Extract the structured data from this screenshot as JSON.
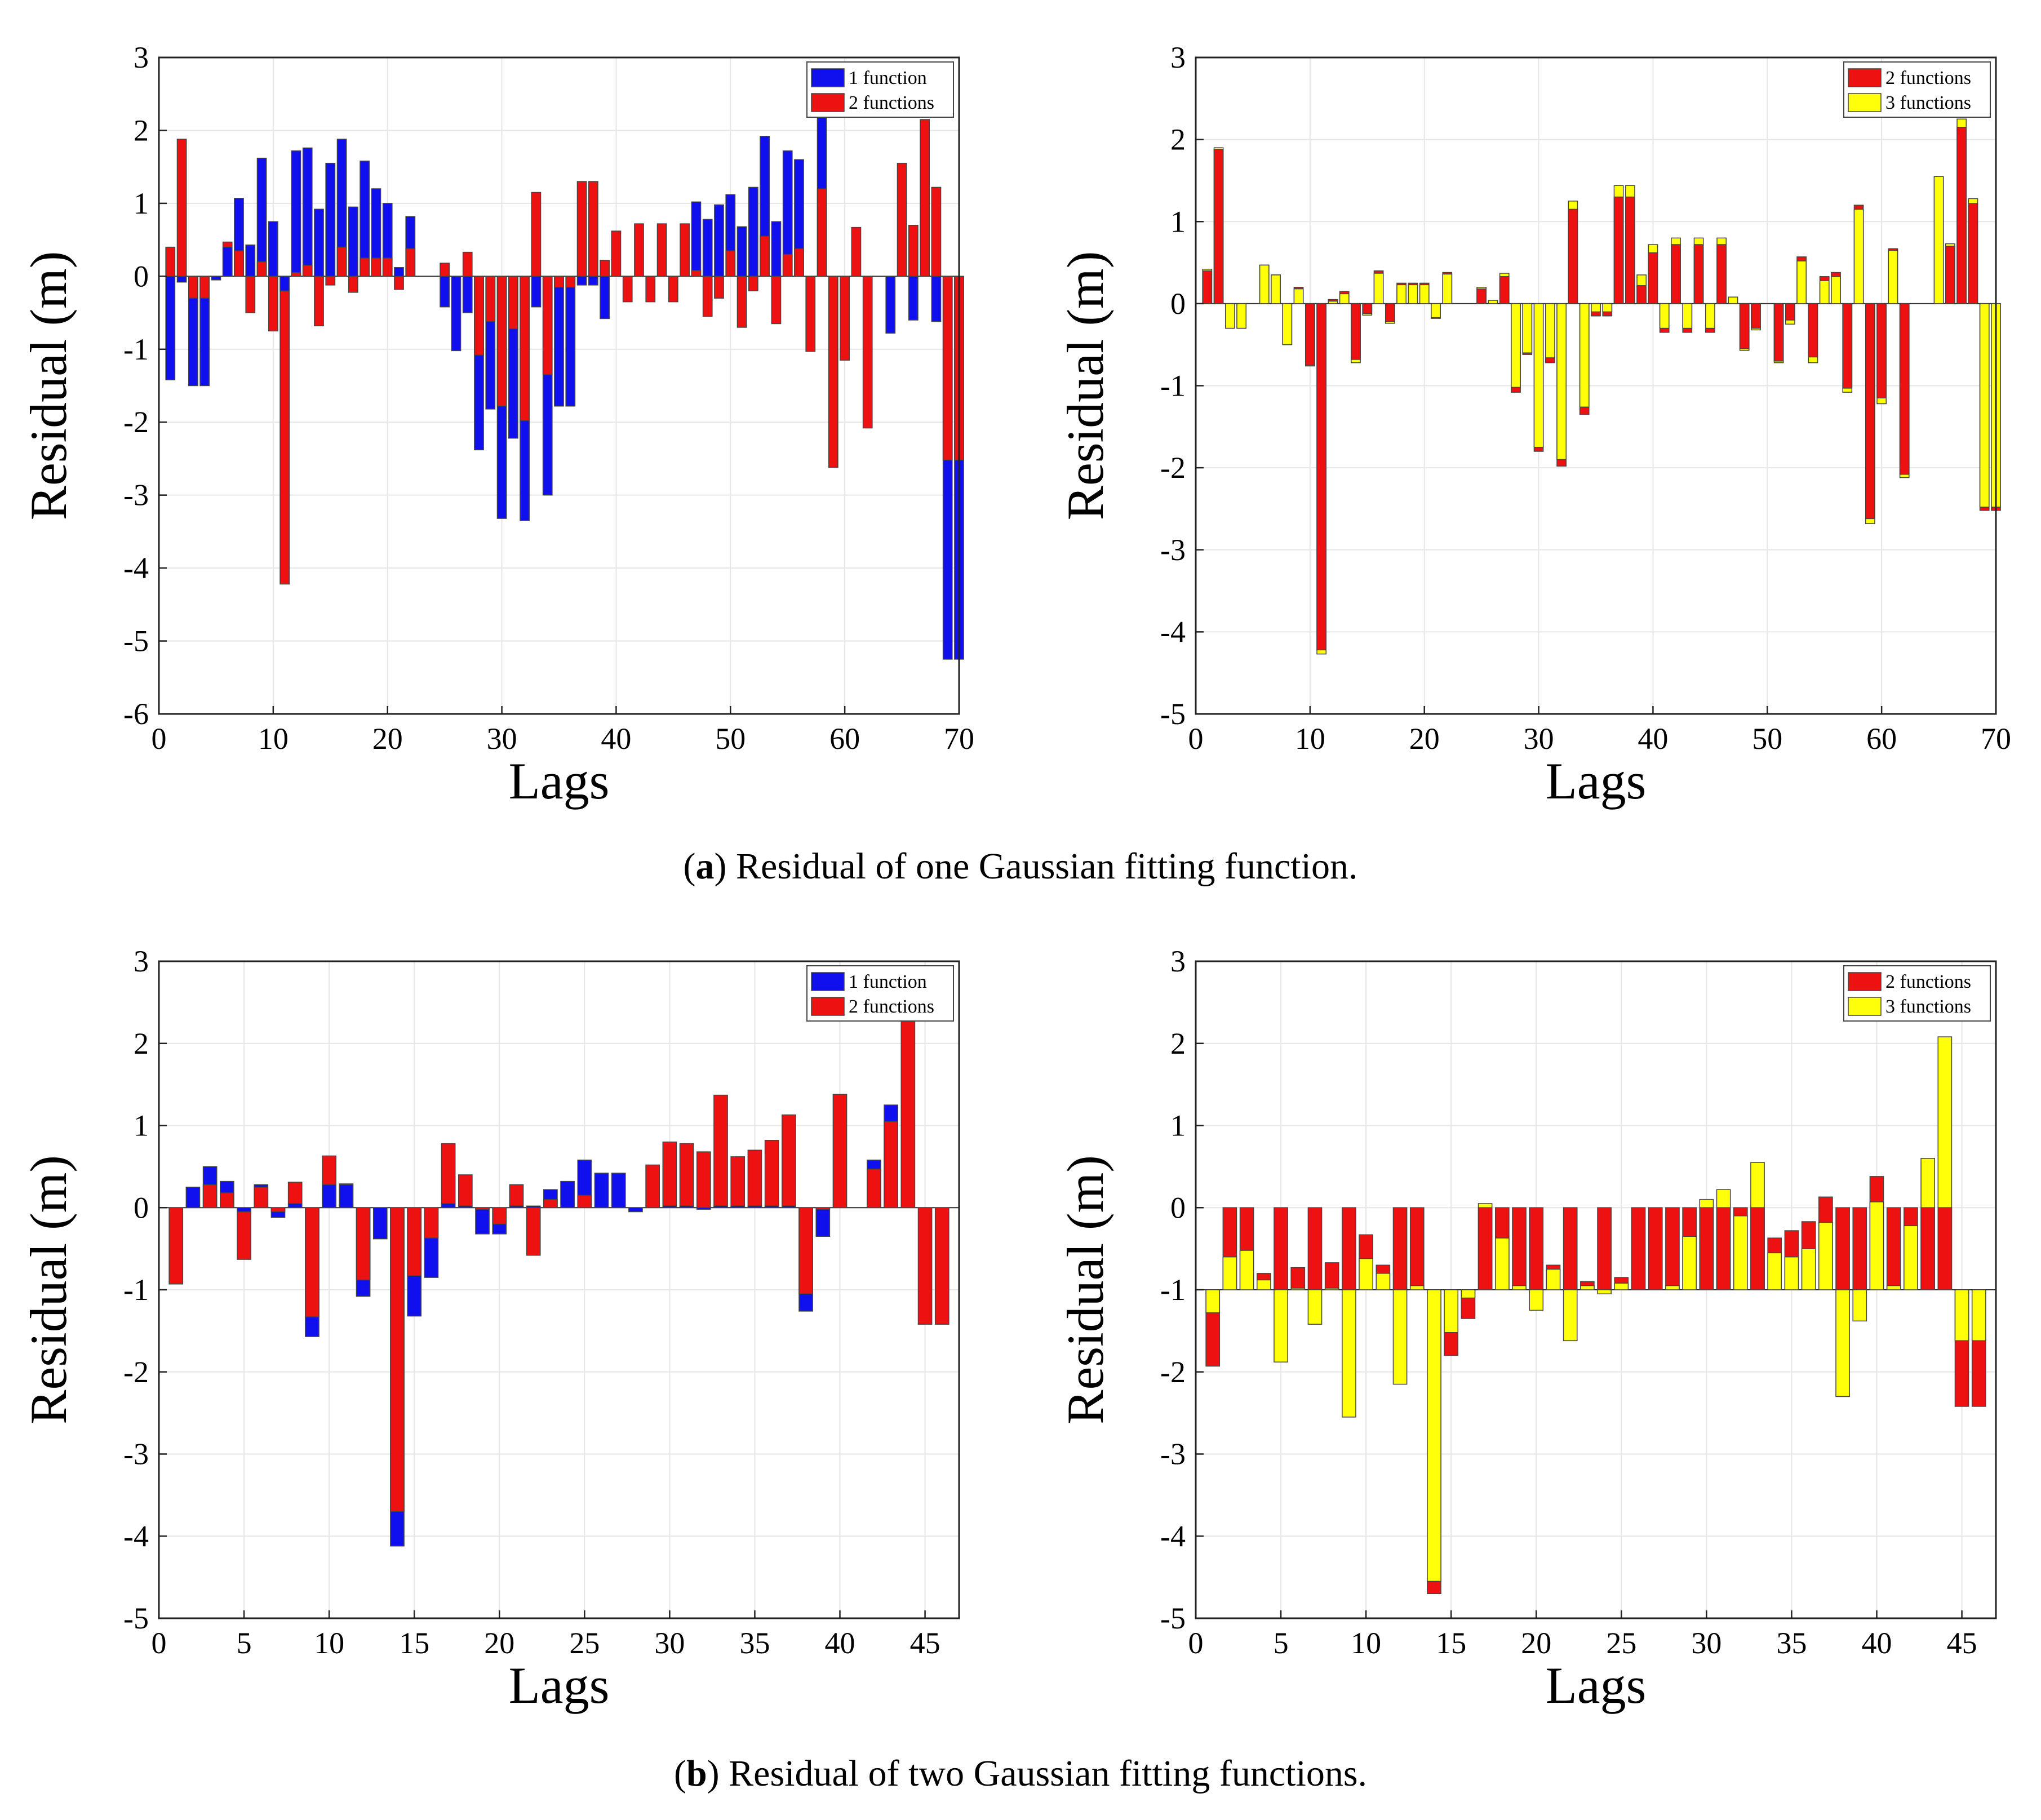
{
  "captions": {
    "a": {
      "label": "a",
      "text": ") Residual of one Gaussian fitting function."
    },
    "b": {
      "label": "b",
      "text": ") Residual of two Gaussian fitting functions."
    }
  },
  "colors": {
    "blue": "#1010ee",
    "red": "#ee1111",
    "yellow": "#ffff0a",
    "grid": "#e6e6e6"
  },
  "chart_data": [
    {
      "id": "a-left",
      "type": "bar",
      "xlabel": "Lags",
      "ylabel": "Residual (m)",
      "xlim": [
        0,
        70
      ],
      "ylim": [
        -6,
        3
      ],
      "xticks": [
        0,
        10,
        20,
        30,
        40,
        50,
        60,
        70
      ],
      "yticks": [
        -6,
        -5,
        -4,
        -3,
        -2,
        -1,
        0,
        1,
        2,
        3
      ],
      "legend_position": "top-right",
      "series": [
        {
          "name": "1 function",
          "color": "#1010ee",
          "values": [
            -1.42,
            -0.08,
            -1.5,
            -1.5,
            -0.05,
            0.4,
            1.07,
            0.43,
            1.62,
            0.75,
            -0.2,
            1.72,
            1.76,
            0.92,
            1.55,
            1.88,
            0.95,
            1.58,
            1.2,
            1.0,
            0.12,
            0.82,
            0,
            0,
            -0.42,
            -1.02,
            -0.5,
            -2.38,
            -1.82,
            -3.32,
            -2.22,
            -3.35,
            -0.42,
            -3.0,
            -1.78,
            -1.78,
            -0.12,
            -0.12,
            -0.58,
            0,
            0,
            0,
            0,
            0,
            0,
            0,
            1.02,
            0.78,
            0.98,
            1.12,
            0.68,
            1.22,
            1.92,
            0.75,
            1.72,
            1.6,
            0,
            2.18,
            0,
            0,
            0,
            0,
            0,
            -0.78,
            0,
            -0.6,
            0,
            -0.62,
            -5.25,
            -5.25
          ]
        },
        {
          "name": "2 functions",
          "color": "#ee1111",
          "values": [
            0.4,
            1.88,
            -0.3,
            -0.3,
            0,
            0.47,
            0.35,
            -0.5,
            0.2,
            -0.75,
            -4.22,
            0.05,
            0.15,
            -0.68,
            -0.12,
            0.4,
            -0.22,
            0.25,
            0.25,
            0.25,
            -0.18,
            0.38,
            0,
            0,
            0.18,
            0,
            0.33,
            -1.08,
            -0.62,
            -1.78,
            -0.72,
            -1.98,
            1.15,
            -1.35,
            -0.15,
            -0.15,
            1.3,
            1.3,
            0.22,
            0.62,
            -0.35,
            0.72,
            -0.35,
            0.72,
            -0.35,
            0.72,
            0.08,
            -0.55,
            -0.3,
            0.35,
            -0.7,
            -0.2,
            0.55,
            -0.65,
            0.3,
            0.38,
            -1.03,
            1.2,
            -2.62,
            -1.15,
            0.67,
            -2.08,
            0,
            0,
            1.55,
            0.7,
            2.15,
            1.22,
            -2.52,
            -2.52
          ]
        }
      ]
    },
    {
      "id": "a-right",
      "type": "bar",
      "xlabel": "Lags",
      "ylabel": "Residual (m)",
      "xlim": [
        0,
        70
      ],
      "ylim": [
        -5,
        3
      ],
      "xticks": [
        0,
        10,
        20,
        30,
        40,
        50,
        60,
        70
      ],
      "yticks": [
        -5,
        -4,
        -3,
        -2,
        -1,
        0,
        1,
        2,
        3
      ],
      "legend_position": "top-right",
      "series": [
        {
          "name": "2 functions",
          "color": "#ee1111",
          "values": [
            0.4,
            1.88,
            -0.3,
            -0.3,
            0,
            0.47,
            0.35,
            -0.5,
            0.2,
            -0.75,
            -4.22,
            0.05,
            0.15,
            -0.68,
            -0.12,
            0.4,
            -0.22,
            0.25,
            0.25,
            0.25,
            -0.18,
            0.38,
            0,
            0,
            0.18,
            0,
            0.33,
            -1.08,
            -0.62,
            -1.8,
            -0.72,
            -1.98,
            1.15,
            -1.35,
            -0.15,
            -0.15,
            1.3,
            1.3,
            0.22,
            0.62,
            -0.35,
            0.72,
            -0.35,
            0.72,
            -0.35,
            0.72,
            0.08,
            -0.55,
            -0.3,
            0.0,
            -0.7,
            -0.2,
            0.57,
            -0.65,
            0.33,
            0.38,
            -1.03,
            1.2,
            -2.62,
            -1.15,
            0.67,
            -2.08,
            0,
            0,
            1.55,
            0.7,
            2.15,
            1.22,
            -2.52,
            -2.52
          ]
        },
        {
          "name": "3 functions",
          "color": "#ffff0a",
          "values": [
            0.42,
            1.9,
            -0.3,
            -0.3,
            0,
            0.47,
            0.35,
            -0.5,
            0.18,
            -0.76,
            -4.27,
            0.03,
            0.12,
            -0.72,
            -0.14,
            0.37,
            -0.24,
            0.23,
            0.23,
            0.23,
            -0.17,
            0.36,
            0,
            0,
            0.2,
            0.04,
            0.37,
            -1.02,
            -0.6,
            -1.75,
            -0.66,
            -1.9,
            1.25,
            -1.26,
            -0.1,
            -0.1,
            1.44,
            1.44,
            0.35,
            0.72,
            -0.3,
            0.8,
            -0.3,
            0.8,
            -0.3,
            0.8,
            0.08,
            -0.57,
            -0.32,
            0.0,
            -0.72,
            -0.25,
            0.52,
            -0.72,
            0.28,
            0.33,
            -1.08,
            1.15,
            -2.68,
            -1.22,
            0.65,
            -2.12,
            0,
            0,
            1.55,
            0.73,
            2.25,
            1.28,
            -2.48,
            -2.48
          ]
        }
      ]
    },
    {
      "id": "b-left",
      "type": "bar",
      "xlabel": "Lags",
      "ylabel": "Residual (m)",
      "xlim": [
        0,
        47
      ],
      "ylim": [
        -5,
        3
      ],
      "xticks": [
        0,
        5,
        10,
        15,
        20,
        25,
        30,
        35,
        40,
        45
      ],
      "yticks": [
        -5,
        -4,
        -3,
        -2,
        -1,
        0,
        1,
        2,
        3
      ],
      "legend_position": "top-right",
      "series": [
        {
          "name": "1 function",
          "color": "#1010ee",
          "values": [
            0,
            0.25,
            0.5,
            0.32,
            -0.05,
            0.28,
            -0.12,
            0.05,
            -1.57,
            0.28,
            0.28,
            -1.08,
            -0.38,
            -4.12,
            -1.32,
            -0.85,
            0.05,
            0.02,
            -0.32,
            -0.32,
            0.02,
            0.02,
            0.22,
            0.32,
            0.58,
            0.42,
            0.42,
            -0.05,
            0,
            0.02,
            0.02,
            -0.02,
            0.02,
            0.02,
            0.02,
            0.02,
            0.02,
            -1.26,
            -0.35,
            0,
            0,
            0.58,
            1.25,
            0,
            0,
            0
          ]
        },
        {
          "name": "2 functions",
          "color": "#ee1111",
          "values": [
            -0.93,
            0,
            0.28,
            0.18,
            -0.63,
            0.25,
            -0.05,
            0.31,
            -1.33,
            0.63,
            0.29,
            -0.88,
            0,
            -3.7,
            -0.83,
            -0.37,
            0.78,
            0.4,
            -0.02,
            -0.2,
            0.28,
            -0.58,
            0.1,
            0,
            0.15,
            0,
            0,
            0,
            0.52,
            0.8,
            0.78,
            0.68,
            1.37,
            0.62,
            0.7,
            0.82,
            1.13,
            -1.05,
            -0.02,
            1.38,
            0,
            0.47,
            1.05,
            2.3,
            -1.42,
            -1.42
          ]
        }
      ]
    },
    {
      "id": "b-right",
      "type": "bar",
      "xlabel": "Lags",
      "ylabel": "Residual (m)",
      "xlim": [
        0,
        47
      ],
      "ylim": [
        -5,
        3
      ],
      "baseline": -1,
      "xticks": [
        0,
        5,
        10,
        15,
        20,
        25,
        30,
        35,
        40,
        45
      ],
      "yticks": [
        -5,
        -4,
        -3,
        -2,
        -1,
        0,
        1,
        2,
        3
      ],
      "legend_position": "top-right",
      "series": [
        {
          "name": "2 functions",
          "color": "#ee1111",
          "values": [
            -1.93,
            0,
            0,
            -0.8,
            0,
            -0.73,
            0,
            -0.67,
            0,
            -0.33,
            -0.7,
            0,
            0,
            -4.7,
            -1.8,
            -1.35,
            0,
            0,
            0,
            0,
            -0.7,
            0,
            -0.9,
            0,
            -0.85,
            0,
            0,
            0,
            0,
            0,
            0,
            0,
            0,
            -0.37,
            -0.28,
            -0.17,
            0.13,
            0,
            0,
            0.38,
            0,
            0,
            0,
            0,
            -2.42,
            -2.42
          ]
        },
        {
          "name": "3 functions",
          "color": "#ffff0a",
          "values": [
            -1.28,
            -0.6,
            -0.52,
            -0.88,
            -1.88,
            -0.98,
            -1.42,
            -0.98,
            -2.55,
            -0.62,
            -0.8,
            -2.15,
            -0.95,
            -4.55,
            -1.52,
            -1.1,
            0.05,
            -0.37,
            -0.95,
            -1.25,
            -0.75,
            -1.62,
            -0.95,
            -1.05,
            -0.92,
            -1.0,
            -1.0,
            -0.95,
            -0.35,
            0.1,
            0.22,
            -0.1,
            0.55,
            -0.55,
            -0.6,
            -0.5,
            -0.18,
            -2.3,
            -1.38,
            0.07,
            -0.95,
            -0.22,
            0.6,
            2.08,
            -1.62,
            -1.62
          ]
        }
      ]
    }
  ]
}
